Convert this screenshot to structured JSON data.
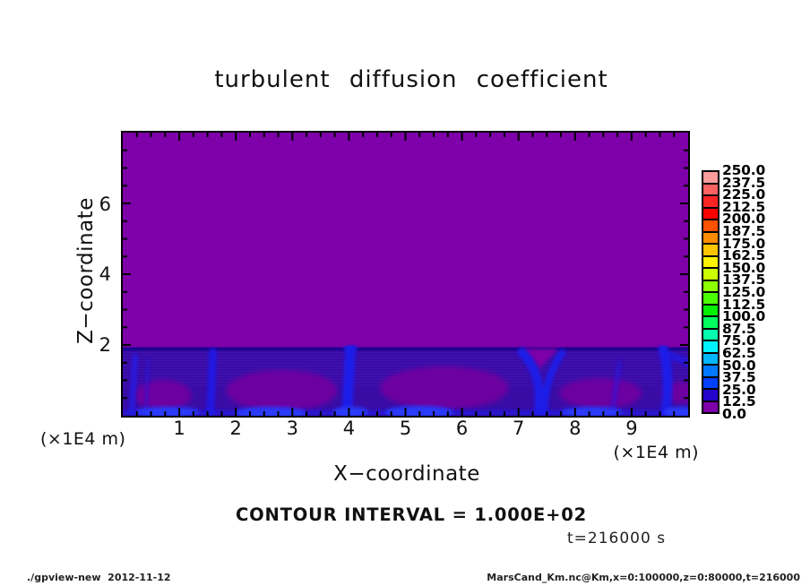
{
  "title": "turbulent diffusion coefficient",
  "plot": {
    "field_color": "#7D00A8",
    "band": {
      "base_color": "#390CA6",
      "top_line_color": "#1E0392",
      "plume_color": "#1F1BE8",
      "bright_color": "#2A3BFA",
      "patch_color": "#6D06A0",
      "stripe_color": "#5A20D0"
    }
  },
  "axes": {
    "x": {
      "label": "X−coordinate",
      "unit": "(×1E4 m)",
      "tick_labels": [
        "1",
        "2",
        "3",
        "4",
        "5",
        "6",
        "7",
        "8",
        "9"
      ]
    },
    "z": {
      "label": "Z−coordinate",
      "unit": "(×1E4 m)",
      "tick_labels": [
        "2",
        "4",
        "6"
      ],
      "tick_values": [
        2,
        4,
        6
      ]
    }
  },
  "colorbar": {
    "labels": [
      "250.0",
      "237.5",
      "225.0",
      "212.5",
      "200.0",
      "187.5",
      "175.0",
      "162.5",
      "150.0",
      "137.5",
      "125.0",
      "112.5",
      "100.0",
      "87.5",
      "75.0",
      "62.5",
      "50.0",
      "37.5",
      "25.0",
      "12.5",
      "0.0"
    ],
    "colors": [
      "#FF9C9C",
      "#FF6262",
      "#FF2424",
      "#FF0000",
      "#FF5200",
      "#FF8C00",
      "#FFC400",
      "#FFF200",
      "#CCFF00",
      "#8CFF00",
      "#4AFF00",
      "#00F000",
      "#00FF5E",
      "#00FFAE",
      "#00F2FF",
      "#00B6FF",
      "#0078FF",
      "#0040FF",
      "#2404C8",
      "#7D00A8"
    ]
  },
  "annotations": {
    "contour_interval": "CONTOUR INTERVAL = 1.000E+02",
    "time": "t=216000 s"
  },
  "footer": {
    "left": "./gpview-new  2012-11-12",
    "right": "MarsCand_Km.nc@Km,x=0:100000,z=0:80000,t=216000"
  },
  "chart_data": {
    "type": "heatmap",
    "title": "turbulent diffusion coefficient",
    "xlabel": "X-coordinate",
    "ylabel": "Z-coordinate",
    "x_unit": "×1E4 m",
    "z_unit": "×1E4 m",
    "x_range_m": [
      0,
      100000
    ],
    "z_range_m": [
      0,
      80000
    ],
    "x_major_ticks": [
      1,
      2,
      3,
      4,
      5,
      6,
      7,
      8,
      9
    ],
    "z_major_ticks": [
      2,
      4,
      6
    ],
    "x_minor_tick_step": 0.25,
    "z_minor_tick_step": 0.5,
    "time_s": 216000,
    "contour_interval": 100.0,
    "levels": [
      0.0,
      12.5,
      25.0,
      37.5,
      50.0,
      62.5,
      75.0,
      87.5,
      100.0,
      112.5,
      125.0,
      137.5,
      150.0,
      162.5,
      175.0,
      187.5,
      200.0,
      212.5,
      225.0,
      237.5,
      250.0
    ],
    "legend_position": "right",
    "grid": false,
    "field_summary": [
      {
        "region": "z above ~2×1E4 m (free atmosphere)",
        "value_range": [
          0,
          12.5
        ],
        "appearance": "uniform purple"
      },
      {
        "region": "z below ~2×1E4 m (boundary layer band)",
        "value_range": [
          12.5,
          50
        ],
        "structure": "convective cells: bright-blue updraft plumes near x ≈ 1.6, 3.9(strong), 6.0(Y-shaped), 7.45 ×1E4 m; dark-indigo striated background; purple low-value cell cores near x ≈ 2.0, 4.5, 6.6 ×1E4 m; bright blue pools along the bottom boundary"
      }
    ]
  }
}
